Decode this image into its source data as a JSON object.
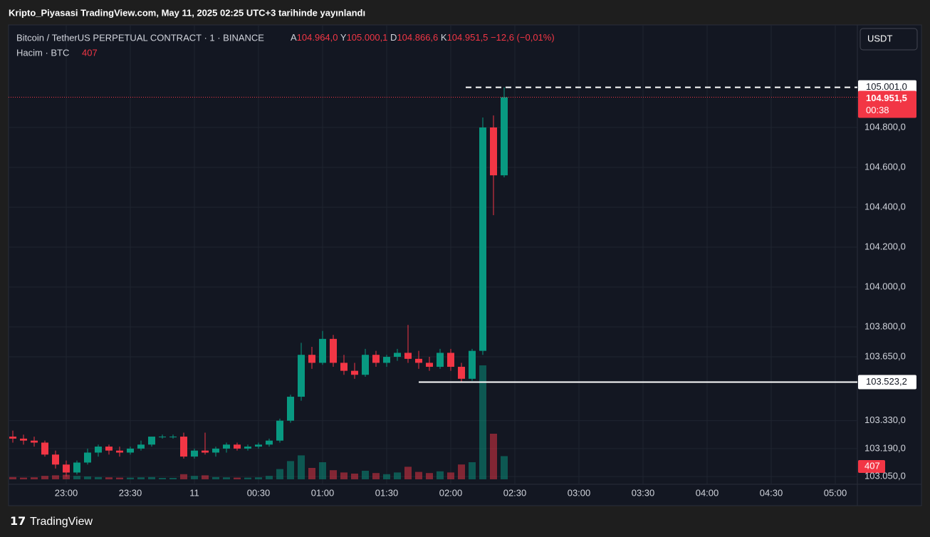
{
  "chart_data": {
    "type": "candlestick",
    "title": "Kripto_Piyasasi TradingView.com, May 11, 2025 02:25 UTC+3 tarihinde yayınlandı",
    "symbol": "Bitcoin / TetherUS PERPETUAL CONTRACT · 1 · BINANCE",
    "ohlc_header": [
      {
        "label": "A",
        "value": "104.964,0"
      },
      {
        "label": "Y",
        "value": "105.000,1"
      },
      {
        "label": "D",
        "value": "104.866,6"
      },
      {
        "label": "K",
        "value": "104.951,5"
      }
    ],
    "change": "−12,6 (−0,01%)",
    "volume_title": "Hacim · BTC",
    "volume_last": "407",
    "currency": "USDT",
    "brand": "TradingView",
    "up_color": "#089981",
    "down_color": "#f23645",
    "x": [
      "22:35",
      "22:40",
      "22:45",
      "22:50",
      "22:55",
      "23:00",
      "23:05",
      "23:10",
      "23:15",
      "23:20",
      "23:25",
      "23:30",
      "23:35",
      "23:40",
      "23:45",
      "23:50",
      "23:55",
      "00:00",
      "00:05",
      "00:10",
      "00:15",
      "00:20",
      "00:25",
      "00:30",
      "00:35",
      "00:40",
      "00:45",
      "00:50",
      "00:55",
      "01:00",
      "01:05",
      "01:10",
      "01:15",
      "01:20",
      "01:25",
      "01:30",
      "01:35",
      "01:40",
      "01:45",
      "01:50",
      "01:55",
      "02:00",
      "02:05",
      "02:10",
      "02:15",
      "02:20",
      "02:25"
    ],
    "open": [
      103250,
      103240,
      103230,
      103220,
      103160,
      103110,
      103070,
      103120,
      103170,
      103200,
      103180,
      103170,
      103190,
      103210,
      103250,
      103250,
      103250,
      103150,
      103180,
      103170,
      103190,
      103210,
      103190,
      103200,
      103210,
      103230,
      103330,
      103450,
      103660,
      103620,
      103740,
      103620,
      103580,
      103560,
      103660,
      103620,
      103650,
      103670,
      103640,
      103620,
      103600,
      103670,
      103600,
      103540,
      103680,
      104800,
      104560
    ],
    "high": [
      103280,
      103260,
      103250,
      103230,
      103180,
      103130,
      103130,
      103190,
      103210,
      103210,
      103200,
      103200,
      103230,
      103250,
      103260,
      103260,
      103270,
      103190,
      103270,
      103200,
      103220,
      103220,
      103210,
      103220,
      103240,
      103340,
      103460,
      103720,
      103700,
      103780,
      103760,
      103660,
      103620,
      103690,
      103680,
      103660,
      103690,
      103810,
      103680,
      103650,
      103690,
      103690,
      103620,
      103690,
      104850,
      104860,
      105001
    ],
    "low": [
      103220,
      103210,
      103200,
      103150,
      103090,
      103050,
      103060,
      103110,
      103150,
      103160,
      103150,
      103160,
      103180,
      103200,
      103240,
      103240,
      103140,
      103140,
      103160,
      103150,
      103170,
      103180,
      103180,
      103190,
      103200,
      103220,
      103320,
      103430,
      103590,
      103610,
      103600,
      103560,
      103540,
      103550,
      103600,
      103600,
      103630,
      103620,
      103590,
      103580,
      103590,
      103580,
      103520,
      103530,
      103660,
      104360,
      104550
    ],
    "close": [
      103240,
      103230,
      103220,
      103160,
      103110,
      103070,
      103120,
      103170,
      103200,
      103180,
      103170,
      103190,
      103210,
      103250,
      103250,
      103250,
      103150,
      103180,
      103170,
      103190,
      103210,
      103190,
      103200,
      103210,
      103230,
      103330,
      103450,
      103660,
      103620,
      103740,
      103620,
      103580,
      103560,
      103660,
      103620,
      103650,
      103670,
      103640,
      103620,
      103600,
      103670,
      103600,
      103540,
      103680,
      104800,
      104560,
      104951.5
    ],
    "volume": [
      40,
      30,
      35,
      60,
      70,
      80,
      60,
      50,
      40,
      35,
      30,
      30,
      35,
      40,
      25,
      25,
      90,
      60,
      70,
      40,
      35,
      30,
      30,
      35,
      60,
      180,
      320,
      420,
      200,
      300,
      160,
      120,
      100,
      150,
      110,
      90,
      120,
      220,
      130,
      110,
      140,
      120,
      260,
      300,
      2000,
      800,
      407
    ],
    "ylim": [
      103011,
      105314
    ],
    "yticks": [
      {
        "value": 104800,
        "label": "104.800,0"
      },
      {
        "value": 104600,
        "label": "104.600,0"
      },
      {
        "value": 104400,
        "label": "104.400,0"
      },
      {
        "value": 104200,
        "label": "104.200,0"
      },
      {
        "value": 104000,
        "label": "104.000,0"
      },
      {
        "value": 103800,
        "label": "103.800,0"
      },
      {
        "value": 103650,
        "label": "103.650,0"
      },
      {
        "value": 103330,
        "label": "103.330,0"
      },
      {
        "value": 103190,
        "label": "103.190,0"
      },
      {
        "value": 103050,
        "label": "103.050,0"
      }
    ],
    "xticks": [
      {
        "value": "23:00",
        "label": "23:00"
      },
      {
        "value": "23:30",
        "label": "23:30"
      },
      {
        "value": "00:00",
        "label": "11"
      },
      {
        "value": "00:30",
        "label": "00:30"
      },
      {
        "value": "01:00",
        "label": "01:00"
      },
      {
        "value": "01:30",
        "label": "01:30"
      },
      {
        "value": "02:00",
        "label": "02:00"
      },
      {
        "value": "02:30",
        "label": "02:30"
      },
      {
        "value": "03:00",
        "label": "03:00"
      },
      {
        "value": "03:30",
        "label": "03:30"
      },
      {
        "value": "04:00",
        "label": "04:00"
      },
      {
        "value": "04:30",
        "label": "04:30"
      },
      {
        "value": "05:00",
        "label": "05:00"
      }
    ],
    "price_lines": [
      {
        "value": 105001,
        "label": "105.001,0",
        "style": "dashed",
        "from": "02:07"
      },
      {
        "value": 103523.2,
        "label": "103.523,2",
        "style": "solid",
        "from": "01:45"
      }
    ],
    "last_price": {
      "value": 104951.5,
      "label": "104.951,5",
      "countdown": "00:38"
    },
    "grid": true
  }
}
